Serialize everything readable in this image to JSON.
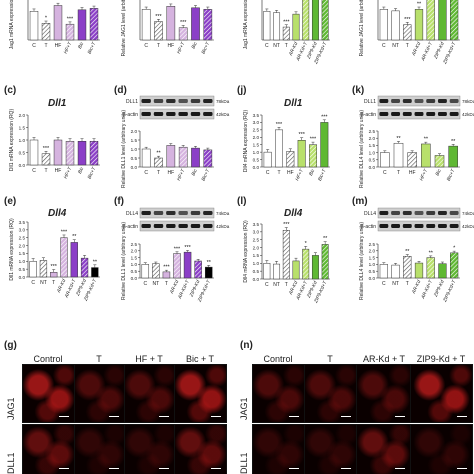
{
  "panel_labels": {
    "c": "(c)",
    "d": "(d)",
    "e": "(e)",
    "f": "(f)",
    "g": "(g)",
    "j": "(j)",
    "k": "(k)",
    "l": "(l)",
    "m": "(m)",
    "n": "(n)"
  },
  "genes": {
    "dll1": "Dll1",
    "dll4": "Dll4"
  },
  "blot": {
    "dll1": "DLL1",
    "dll4": "DLL4",
    "actin": "β-actin",
    "kda_dll1": "78kDa",
    "kda_dll4": "74kDa",
    "kda_actin": "42kDa"
  },
  "lanes_left": [
    "C",
    "T",
    "HF",
    "HF+T",
    "Bic",
    "Bic+T"
  ],
  "lanes_right": [
    "C",
    "NT",
    "T",
    "AR-Kd",
    "AR-Kd+T",
    "ZIP9-Kd",
    "ZIP9-Kd+T"
  ],
  "micro_g": {
    "titles": [
      "Control",
      "T",
      "HF + T",
      "Bic + T"
    ],
    "rows": [
      "JAG1",
      "DLL1"
    ]
  },
  "micro_n": {
    "titles": [
      "Control",
      "T",
      "AR-Kd + T",
      "ZIP9-Kd + T"
    ],
    "rows": [
      "JAG1",
      "DLL1"
    ]
  },
  "chart_data": [
    {
      "type": "bar",
      "panel": "top-left",
      "title": "",
      "ylabel": "Jag1 mRNA expression (RQ)",
      "categories": [
        "C",
        "T",
        "HF",
        "HF+T",
        "Bic",
        "Bic+T"
      ],
      "values": [
        1.0,
        0.58,
        1.2,
        0.55,
        1.05,
        1.1
      ],
      "ylim": [
        0,
        1.6
      ],
      "annotations": [
        "",
        "*",
        "",
        "***",
        "",
        ""
      ]
    },
    {
      "type": "bar",
      "panel": "top-left-2",
      "title": "",
      "ylabel": "Relative JAG1 level (arbitrary units)",
      "categories": [
        "C",
        "T",
        "HF",
        "HF+T",
        "Bic",
        "Bic+T"
      ],
      "values": [
        1.0,
        0.6,
        1.1,
        0.4,
        1.05,
        1.0
      ],
      "ylim": [
        0,
        1.5
      ],
      "annotations": [
        "",
        "***",
        "",
        "***",
        "",
        ""
      ]
    },
    {
      "type": "bar",
      "panel": "top-right",
      "title": "",
      "ylabel": "Jag1 mRNA expression (RQ)",
      "categories": [
        "C",
        "NT",
        "T",
        "AR-Kd",
        "AR-Kd+T",
        "ZIP9-Kd",
        "ZIP9-Kd+T"
      ],
      "values": [
        1.0,
        0.95,
        0.45,
        0.9,
        1.5,
        1.4,
        1.55
      ],
      "ylim": [
        0,
        1.6
      ],
      "annotations": [
        "",
        "",
        "***",
        "",
        "",
        "",
        ""
      ]
    },
    {
      "type": "bar",
      "panel": "top-right-2",
      "title": "",
      "ylabel": "Relative JAG1 level (arbitrary units)",
      "categories": [
        "C",
        "NT",
        "T",
        "AR-Kd",
        "AR-Kd+T",
        "ZIP9-Kd",
        "ZIP9-Kd+T"
      ],
      "values": [
        1.0,
        0.95,
        0.5,
        1.0,
        1.4,
        1.35,
        1.45
      ],
      "ylim": [
        0,
        1.5
      ],
      "annotations": [
        "",
        "",
        "***",
        "**",
        "",
        "",
        ""
      ]
    },
    {
      "type": "bar",
      "panel": "c",
      "title": "",
      "ylabel": "Dll1 mRNA expression (RQ)",
      "categories": [
        "C",
        "T",
        "HF",
        "HF+T",
        "Bic",
        "Bic+T"
      ],
      "values": [
        1.0,
        0.45,
        1.0,
        0.95,
        0.95,
        0.95
      ],
      "ylim": [
        0,
        2.0
      ],
      "yticks": [
        0,
        0.5,
        1.0,
        1.5,
        2.0
      ],
      "annotations": [
        "",
        "***",
        "",
        "",
        "",
        ""
      ]
    },
    {
      "type": "bar",
      "panel": "d",
      "title": "",
      "ylabel": "Relative DLL1 level (arbitrary units)",
      "categories": [
        "C",
        "T",
        "HF",
        "HF+T",
        "Bic",
        "Bic+T"
      ],
      "values": [
        1.0,
        0.5,
        1.2,
        1.1,
        1.05,
        0.95
      ],
      "ylim": [
        0,
        2.0
      ],
      "yticks": [
        0,
        0.5,
        1.0,
        1.5,
        2.0
      ],
      "annotations": [
        "",
        "**",
        "",
        "",
        "",
        ""
      ]
    },
    {
      "type": "bar",
      "panel": "e",
      "title": "",
      "ylabel": "Dll4 mRNA expression (RQ)",
      "categories": [
        "C",
        "T",
        "HF",
        "HF+T",
        "Bic",
        "Bic+T"
      ],
      "values": [
        1.0,
        2.5,
        1.05,
        1.8,
        1.5,
        3.0
      ],
      "ylim": [
        0,
        3.5
      ],
      "yticks": [
        0,
        0.5,
        1.0,
        1.5,
        2.0,
        2.5,
        3.0,
        3.5
      ],
      "annotations": [
        "",
        "***",
        "",
        "***",
        "***",
        "***"
      ]
    },
    {
      "type": "bar",
      "panel": "f",
      "title": "",
      "ylabel": "Relative DLL4 level (arbitrary units)",
      "categories": [
        "C",
        "T",
        "HF",
        "HF+T",
        "Bic",
        "Bic+T"
      ],
      "values": [
        1.0,
        1.65,
        1.0,
        1.6,
        0.8,
        1.45
      ],
      "ylim": [
        0,
        2.5
      ],
      "yticks": [
        0,
        0.5,
        1.0,
        1.5,
        2.0,
        2.5
      ],
      "annotations": [
        "",
        "**",
        "",
        "**",
        "",
        "**"
      ]
    },
    {
      "type": "bar",
      "panel": "j",
      "title": "",
      "ylabel": "Dll1 mRNA expression (RQ)",
      "categories": [
        "C",
        "NT",
        "T",
        "AR-Kd",
        "AR-Kd+T",
        "ZIP9-Kd",
        "ZIP9-Kd+T"
      ],
      "values": [
        1.0,
        1.05,
        0.3,
        2.5,
        2.2,
        1.2,
        0.6
      ],
      "ylim": [
        0,
        3.5
      ],
      "yticks": [
        0,
        0.5,
        1.0,
        1.5,
        2.0,
        2.5,
        3.0,
        3.5
      ],
      "annotations": [
        "",
        "",
        "***",
        "***",
        "**",
        "",
        "**"
      ]
    },
    {
      "type": "bar",
      "panel": "k",
      "title": "",
      "ylabel": "Relative DLL1 level (arbitrary units)",
      "categories": [
        "C",
        "NT",
        "T",
        "AR-Kd",
        "AR-Kd+T",
        "ZIP9-Kd",
        "ZIP9-Kd+T"
      ],
      "values": [
        1.0,
        1.05,
        0.45,
        1.8,
        1.9,
        1.25,
        0.8
      ],
      "ylim": [
        0,
        2.5
      ],
      "yticks": [
        0,
        0.5,
        1.0,
        1.5,
        2.0,
        2.5
      ],
      "annotations": [
        "",
        "",
        "***",
        "***",
        "***",
        "",
        "**"
      ]
    },
    {
      "type": "bar",
      "panel": "l",
      "title": "",
      "ylabel": "Dll4 mRNA expression (RQ)",
      "categories": [
        "C",
        "NT",
        "T",
        "AR-Kd",
        "AR-Kd+T",
        "ZIP9-Kd",
        "ZIP9-Kd+T"
      ],
      "values": [
        1.0,
        0.95,
        3.1,
        1.15,
        1.9,
        1.5,
        2.2
      ],
      "ylim": [
        0,
        3.5
      ],
      "yticks": [
        0,
        0.5,
        1.0,
        1.5,
        2.0,
        2.5,
        3.0,
        3.5
      ],
      "annotations": [
        "",
        "",
        "***",
        "",
        "*",
        "",
        "**"
      ]
    },
    {
      "type": "bar",
      "panel": "m",
      "title": "",
      "ylabel": "Relative DLL4 level (arbitrary units)",
      "categories": [
        "C",
        "NT",
        "T",
        "AR-Kd",
        "AR-Kd+T",
        "ZIP9-Kd",
        "ZIP9-Kd+T"
      ],
      "values": [
        1.0,
        0.95,
        1.6,
        1.1,
        1.5,
        1.05,
        1.85
      ],
      "ylim": [
        0,
        2.5
      ],
      "yticks": [
        0,
        0.5,
        1.0,
        1.5,
        2.0,
        2.5
      ],
      "annotations": [
        "",
        "",
        "**",
        "",
        "**",
        "",
        "*"
      ]
    }
  ],
  "colors": {
    "control": "#ffffff",
    "treatment_hatch": "#555555",
    "hf": "#d5b3df",
    "bic": "#8b3fc7",
    "ar_kd": "#b8e06b",
    "zip9_kd": "#5fb833",
    "fluor": "#b01818"
  }
}
